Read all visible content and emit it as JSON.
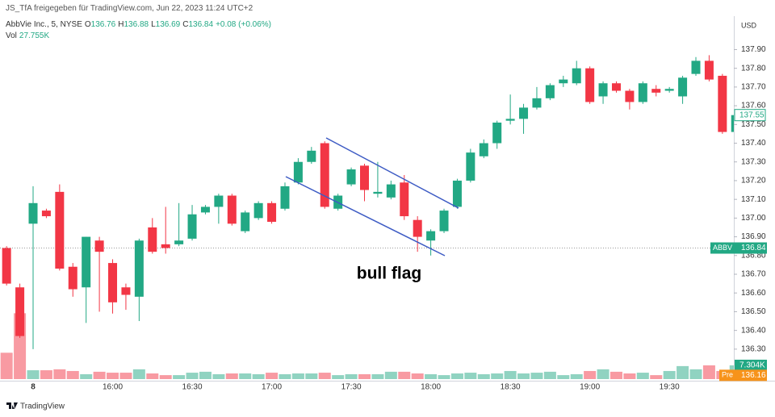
{
  "header": {
    "title": "JS_TfA freigegeben für TradingView.com, Jun 22, 2023 11:24 UTC+2"
  },
  "legend": {
    "symbol": "AbbVie Inc., 5, NYSE",
    "o_label": "O",
    "open": 136.76,
    "h_label": "H",
    "high": 136.88,
    "l_label": "L",
    "low": 136.69,
    "c_label": "C",
    "close": 136.84,
    "change": "+0.08 (+0.06%)",
    "vol_label": "Vol",
    "volume": "27.755K"
  },
  "footer": {
    "brand": "TradingView"
  },
  "chart_data": {
    "type": "candlestick",
    "currency": "USD",
    "annotation": "bull flag",
    "up_color": "#22a884",
    "down_color": "#f23645",
    "categories": [
      null,
      null,
      "8",
      null,
      null,
      null,
      null,
      null,
      "16:00",
      null,
      null,
      null,
      null,
      null,
      "16:30",
      null,
      null,
      null,
      null,
      null,
      "17:00",
      null,
      null,
      null,
      null,
      null,
      "17:30",
      null,
      null,
      null,
      null,
      null,
      "18:00",
      null,
      null,
      null,
      null,
      null,
      "18:30",
      null,
      null,
      null,
      null,
      null,
      "19:00",
      null,
      null,
      null,
      null,
      null,
      "19:30",
      null,
      null,
      null,
      null,
      null
    ],
    "open": [
      136.84,
      136.63,
      136.97,
      137.04,
      137.14,
      136.74,
      136.63,
      136.88,
      136.76,
      136.63,
      136.58,
      136.95,
      136.86,
      136.86,
      136.89,
      137.03,
      137.06,
      137.12,
      136.93,
      137.0,
      137.08,
      137.05,
      137.19,
      137.3,
      137.4,
      137.05,
      137.18,
      137.28,
      137.13,
      137.11,
      137.19,
      136.99,
      136.88,
      136.93,
      137.06,
      137.2,
      137.33,
      137.4,
      137.52,
      137.53,
      137.59,
      137.64,
      137.72,
      137.72,
      137.8,
      137.65,
      137.72,
      137.68,
      137.62,
      137.69,
      137.68,
      137.65,
      137.77,
      137.84,
      137.76,
      137.46
    ],
    "high": [
      136.85,
      136.65,
      137.17,
      137.05,
      137.18,
      136.76,
      136.9,
      136.9,
      136.78,
      136.65,
      136.89,
      137.0,
      137.06,
      137.08,
      137.07,
      137.07,
      137.13,
      137.13,
      137.04,
      137.09,
      137.09,
      137.19,
      137.32,
      137.38,
      137.41,
      137.13,
      137.27,
      137.29,
      137.3,
      137.2,
      137.23,
      137.01,
      136.94,
      137.05,
      137.21,
      137.37,
      137.42,
      137.52,
      137.66,
      137.61,
      137.7,
      137.72,
      137.76,
      137.84,
      137.81,
      137.73,
      137.73,
      137.69,
      137.73,
      137.71,
      137.7,
      137.76,
      137.86,
      137.87,
      137.77,
      137.56
    ],
    "low": [
      136.64,
      136.36,
      136.3,
      137.0,
      136.72,
      136.58,
      136.44,
      136.5,
      136.49,
      136.51,
      136.45,
      136.81,
      136.81,
      136.85,
      136.88,
      137.02,
      136.97,
      136.96,
      136.92,
      136.99,
      136.97,
      137.04,
      137.18,
      137.29,
      137.05,
      137.04,
      137.17,
      137.09,
      137.11,
      137.1,
      136.99,
      136.82,
      136.8,
      136.92,
      137.05,
      137.19,
      137.32,
      137.37,
      137.5,
      137.45,
      137.58,
      137.63,
      137.7,
      137.71,
      137.61,
      137.61,
      137.67,
      137.58,
      137.61,
      137.65,
      137.67,
      137.61,
      137.76,
      137.73,
      137.45,
      137.45
    ],
    "close": [
      136.65,
      136.37,
      137.08,
      137.01,
      136.73,
      136.62,
      136.9,
      136.82,
      136.55,
      136.59,
      136.88,
      136.82,
      136.84,
      136.88,
      137.02,
      137.06,
      137.12,
      136.97,
      137.03,
      137.08,
      136.98,
      137.17,
      137.3,
      137.36,
      137.06,
      137.12,
      137.26,
      137.15,
      137.14,
      137.18,
      137.01,
      136.9,
      136.93,
      137.04,
      137.2,
      137.35,
      137.4,
      137.51,
      137.53,
      137.59,
      137.64,
      137.71,
      137.74,
      137.8,
      137.62,
      137.72,
      137.68,
      137.62,
      137.72,
      137.67,
      137.69,
      137.75,
      137.84,
      137.74,
      137.46,
      137.55
    ],
    "volume": {
      "values": [
        14,
        35,
        4.7,
        4.7,
        5.2,
        4.3,
        2.6,
        3.9,
        3.4,
        3.4,
        5.2,
        3,
        2.1,
        2.1,
        3.4,
        3.9,
        2.6,
        3,
        3,
        2.6,
        3.4,
        2.6,
        3,
        3,
        3.4,
        2.1,
        2.6,
        2.6,
        2.6,
        3.9,
        3.9,
        3,
        2.6,
        2.1,
        3,
        3.4,
        2.6,
        3,
        4.3,
        3,
        3.4,
        3.9,
        2.1,
        2.6,
        4.3,
        5.2,
        3.9,
        3,
        3.4,
        2.1,
        4.3,
        6.9,
        5.2,
        7.3,
        4.3,
        7.304
      ],
      "last_label": "7.304K",
      "vlim": [
        0,
        192
      ]
    },
    "ylim": [
      136.14,
      138.07
    ],
    "yticks": [
      {
        "value": 136.3,
        "label": "136.30"
      },
      {
        "value": 136.4,
        "label": "136.40"
      },
      {
        "value": 136.5,
        "label": "136.50"
      },
      {
        "value": 136.6,
        "label": "136.60"
      },
      {
        "value": 136.7,
        "label": "136.70"
      },
      {
        "value": 136.8,
        "label": "136.80"
      },
      {
        "value": 136.9,
        "label": "136.90"
      },
      {
        "value": 137.0,
        "label": "137.00"
      },
      {
        "value": 137.1,
        "label": "137.10"
      },
      {
        "value": 137.2,
        "label": "137.20"
      },
      {
        "value": 137.3,
        "label": "137.30"
      },
      {
        "value": 137.4,
        "label": "137.40"
      },
      {
        "value": 137.5,
        "label": "137.50"
      },
      {
        "value": 137.6,
        "label": "137.60"
      },
      {
        "value": 137.7,
        "label": "137.70"
      },
      {
        "value": 137.8,
        "label": "137.80"
      },
      {
        "value": 137.9,
        "label": "137.90"
      }
    ],
    "last_price": 137.55,
    "symbol_price": {
      "symbol": "ABBV",
      "value": 136.84
    },
    "pre_price": {
      "label": "Pre",
      "value": 136.16
    },
    "grid": false
  }
}
